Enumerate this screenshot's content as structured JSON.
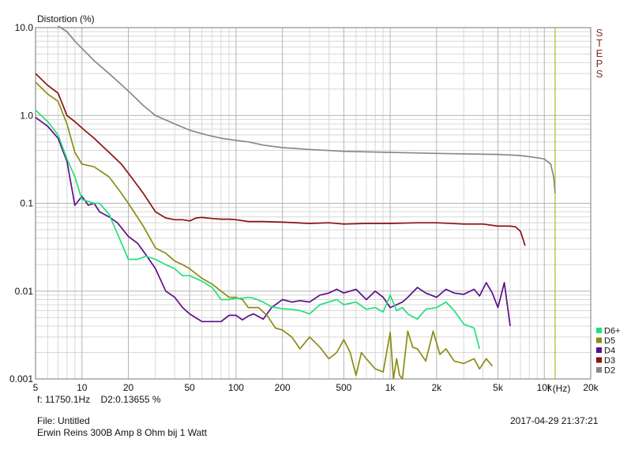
{
  "chart_data": {
    "type": "line",
    "title": "Distortion (%)",
    "xlabel": "f (Hz)",
    "ylabel": "Distortion (%)",
    "xscale": "log",
    "yscale": "log",
    "xlim": [
      5,
      20000
    ],
    "ylim": [
      0.001,
      10
    ],
    "grid": true,
    "legend_position": "bottom-right",
    "x_tick_labels": [
      "5",
      "10",
      "20",
      "50",
      "100",
      "200",
      "500",
      "1k",
      "2k",
      "5k",
      "10k",
      "20k"
    ],
    "x_tick_values": [
      5,
      10,
      20,
      50,
      100,
      200,
      500,
      1000,
      2000,
      5000,
      10000,
      20000
    ],
    "y_tick_labels": [
      "10.0",
      "1.0",
      "0.1",
      "0.01",
      "0.001"
    ],
    "y_tick_values": [
      10,
      1,
      0.1,
      0.01,
      0.001
    ],
    "cursor": {
      "x": 11750.1,
      "color": "#b8b820"
    },
    "side_label": "STEPS",
    "series": [
      {
        "name": "D6+",
        "color": "#22e07a",
        "x": [
          5,
          6,
          7,
          8,
          9,
          10,
          11,
          12,
          13,
          15,
          17,
          20,
          23,
          26,
          30,
          35,
          40,
          45,
          50,
          60,
          70,
          80,
          90,
          100,
          110,
          120,
          130,
          150,
          170,
          200,
          230,
          260,
          300,
          350,
          400,
          450,
          500,
          600,
          700,
          800,
          900,
          1000,
          1100,
          1200,
          1300,
          1500,
          1700,
          2000,
          2300,
          2600,
          3000,
          3500,
          3800
        ],
        "y": [
          1.15,
          0.85,
          0.6,
          0.32,
          0.2,
          0.11,
          0.105,
          0.1,
          0.1,
          0.075,
          0.045,
          0.023,
          0.023,
          0.025,
          0.023,
          0.02,
          0.018,
          0.015,
          0.015,
          0.013,
          0.011,
          0.008,
          0.008,
          0.0083,
          0.0083,
          0.0085,
          0.0083,
          0.0075,
          0.0066,
          0.0063,
          0.0062,
          0.006,
          0.0055,
          0.007,
          0.0075,
          0.008,
          0.007,
          0.0075,
          0.0062,
          0.0065,
          0.0058,
          0.009,
          0.006,
          0.0065,
          0.0055,
          0.0048,
          0.0062,
          0.0065,
          0.0075,
          0.006,
          0.0042,
          0.0038,
          0.0022
        ]
      },
      {
        "name": "D5",
        "color": "#8c8c16",
        "x": [
          5,
          6,
          7,
          8,
          9,
          10,
          12,
          15,
          18,
          20,
          25,
          30,
          35,
          40,
          45,
          50,
          60,
          70,
          80,
          90,
          100,
          110,
          120,
          140,
          160,
          180,
          200,
          230,
          260,
          300,
          350,
          400,
          450,
          500,
          550,
          600,
          650,
          700,
          800,
          900,
          1000,
          1050,
          1100,
          1150,
          1200,
          1300,
          1400,
          1500,
          1700,
          1900,
          2100,
          2300,
          2600,
          3000,
          3500,
          3800,
          4200,
          4600
        ],
        "y": [
          2.4,
          1.75,
          1.45,
          0.8,
          0.38,
          0.28,
          0.26,
          0.2,
          0.13,
          0.1,
          0.055,
          0.031,
          0.027,
          0.022,
          0.02,
          0.018,
          0.014,
          0.012,
          0.01,
          0.0085,
          0.0085,
          0.008,
          0.0065,
          0.0065,
          0.0052,
          0.0038,
          0.0036,
          0.003,
          0.0022,
          0.003,
          0.0023,
          0.0017,
          0.002,
          0.0028,
          0.002,
          0.0011,
          0.002,
          0.0017,
          0.0013,
          0.0012,
          0.0034,
          0.0009,
          0.0017,
          0.0011,
          0.001,
          0.0035,
          0.0023,
          0.0022,
          0.0016,
          0.0035,
          0.0019,
          0.0022,
          0.0016,
          0.0015,
          0.0017,
          0.0013,
          0.0017,
          0.0014
        ]
      },
      {
        "name": "D4",
        "color": "#5c0f8a",
        "x": [
          5,
          6,
          7,
          8,
          9,
          10,
          11,
          12,
          13,
          15,
          17,
          20,
          23,
          26,
          30,
          35,
          40,
          45,
          50,
          60,
          70,
          80,
          90,
          100,
          110,
          120,
          130,
          150,
          170,
          200,
          230,
          260,
          300,
          350,
          400,
          450,
          500,
          600,
          700,
          800,
          900,
          1000,
          1100,
          1200,
          1300,
          1500,
          1700,
          2000,
          2300,
          2600,
          3000,
          3500,
          3800,
          4200,
          4600,
          5000,
          5500,
          6000
        ],
        "y": [
          0.95,
          0.75,
          0.55,
          0.3,
          0.095,
          0.12,
          0.095,
          0.1,
          0.08,
          0.07,
          0.06,
          0.042,
          0.035,
          0.026,
          0.018,
          0.01,
          0.0085,
          0.0065,
          0.0055,
          0.0045,
          0.0045,
          0.0045,
          0.0053,
          0.0053,
          0.0047,
          0.0052,
          0.0055,
          0.0048,
          0.0065,
          0.008,
          0.0075,
          0.0078,
          0.0075,
          0.009,
          0.0095,
          0.0105,
          0.0095,
          0.0105,
          0.008,
          0.01,
          0.0085,
          0.0065,
          0.007,
          0.0075,
          0.0085,
          0.011,
          0.0095,
          0.0085,
          0.0105,
          0.0095,
          0.0092,
          0.0105,
          0.0088,
          0.0125,
          0.0095,
          0.0065,
          0.0125,
          0.004
        ]
      },
      {
        "name": "D3",
        "color": "#8b1010",
        "x": [
          5,
          6,
          7,
          8,
          9,
          10,
          12,
          15,
          18,
          20,
          25,
          30,
          35,
          40,
          45,
          50,
          55,
          60,
          70,
          80,
          90,
          100,
          120,
          150,
          200,
          300,
          400,
          500,
          700,
          1000,
          1500,
          2000,
          3000,
          4000,
          5000,
          6000,
          6500,
          7000,
          7500
        ],
        "y": [
          3.0,
          2.2,
          1.8,
          1.0,
          0.85,
          0.72,
          0.55,
          0.38,
          0.28,
          0.22,
          0.13,
          0.08,
          0.068,
          0.065,
          0.065,
          0.063,
          0.068,
          0.069,
          0.067,
          0.066,
          0.066,
          0.065,
          0.062,
          0.062,
          0.061,
          0.059,
          0.06,
          0.058,
          0.059,
          0.059,
          0.06,
          0.06,
          0.058,
          0.058,
          0.055,
          0.055,
          0.054,
          0.048,
          0.033
        ]
      },
      {
        "name": "D2",
        "color": "#888888",
        "x": [
          7,
          8,
          9,
          10,
          12,
          15,
          20,
          25,
          30,
          40,
          50,
          60,
          70,
          80,
          100,
          120,
          150,
          200,
          300,
          500,
          1000,
          2000,
          5000,
          7000,
          9000,
          10000,
          11000,
          11500,
          11750
        ],
        "y": [
          11,
          9,
          7,
          5.8,
          4.2,
          3.0,
          1.9,
          1.3,
          1.0,
          0.8,
          0.68,
          0.62,
          0.58,
          0.55,
          0.52,
          0.5,
          0.46,
          0.43,
          0.41,
          0.39,
          0.38,
          0.37,
          0.36,
          0.35,
          0.33,
          0.32,
          0.28,
          0.2,
          0.13
        ]
      }
    ]
  },
  "readout": {
    "freq": "f: 11750.1Hz",
    "value": "D2:0.13655  %"
  },
  "file": {
    "label": "File: Untitled",
    "desc": "Erwin Reins 300B Amp 8 Ohm bij 1 Watt"
  },
  "timestamp": "2017-04-29 21:37:21"
}
